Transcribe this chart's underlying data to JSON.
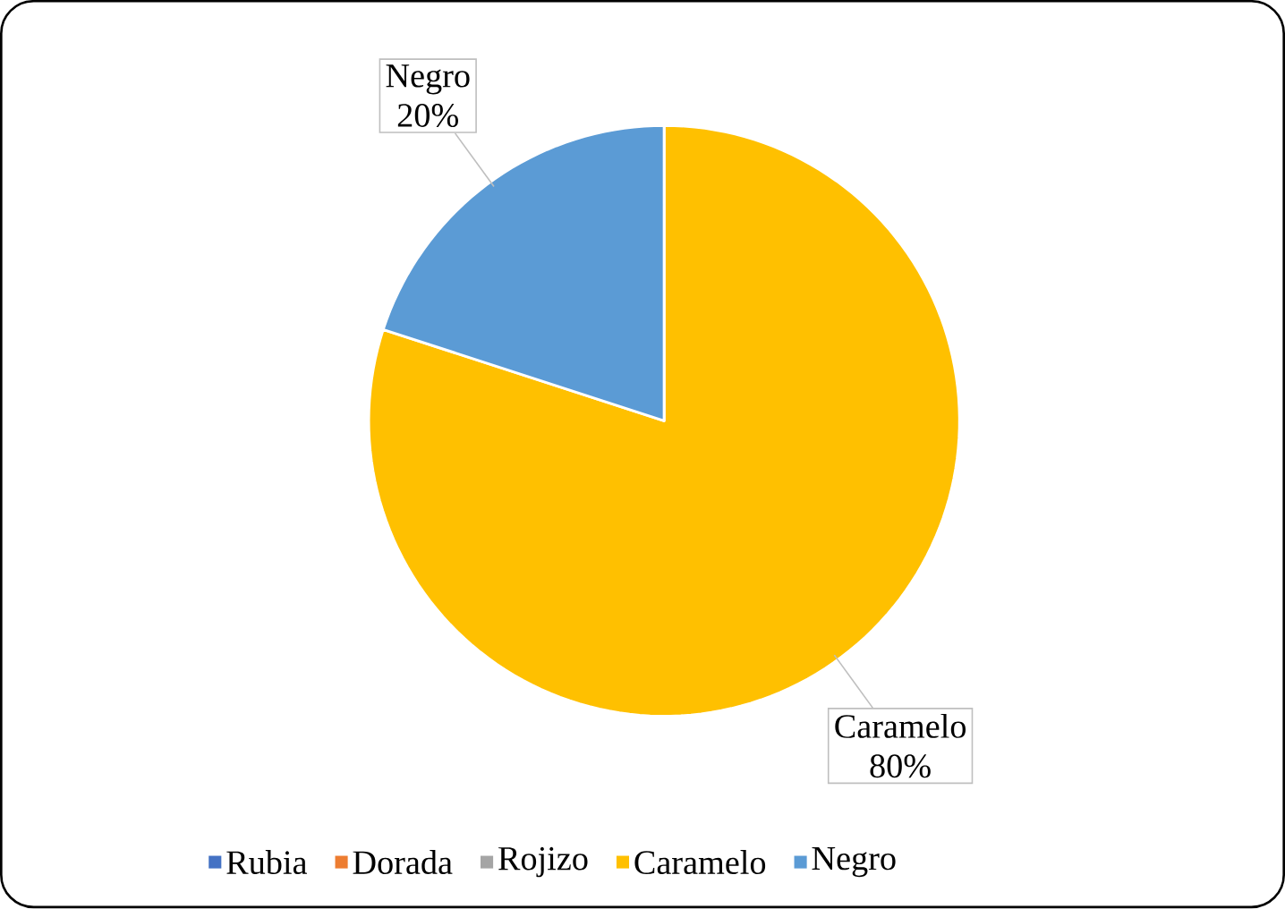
{
  "chart_data": {
    "type": "pie",
    "categories": [
      "Rubia",
      "Dorada",
      "Rojizo",
      "Caramelo",
      "Negro"
    ],
    "values": [
      0,
      0,
      0,
      80,
      20
    ],
    "colors": [
      "#4472c4",
      "#ed7d31",
      "#a5a5a5",
      "#ffc000",
      "#5b9bd5"
    ],
    "value_labels": [
      null,
      null,
      null,
      "80%",
      "20%"
    ],
    "legend": "bottom"
  }
}
